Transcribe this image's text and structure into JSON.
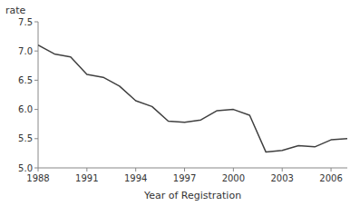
{
  "chart_data": {
    "type": "line",
    "xlabel": "Year of Registration",
    "ylabel": "rate",
    "x": [
      1988,
      1989,
      1990,
      1991,
      1992,
      1993,
      1994,
      1995,
      1996,
      1997,
      1998,
      1999,
      2000,
      2001,
      2002,
      2003,
      2004,
      2005,
      2006,
      2007
    ],
    "values": [
      7.1,
      6.95,
      6.9,
      6.6,
      6.55,
      6.4,
      6.15,
      6.05,
      5.8,
      5.78,
      5.82,
      5.98,
      6.0,
      5.9,
      5.27,
      5.3,
      5.38,
      5.36,
      5.48,
      5.5
    ],
    "color": "#404040",
    "xlim": [
      1988,
      2007
    ],
    "ylim": [
      5.0,
      7.5
    ],
    "xticks": [
      1988,
      1991,
      1994,
      1997,
      2000,
      2003,
      2006
    ],
    "yticks": [
      {
        "value": 5.0,
        "label": "5.0"
      },
      5.5,
      {
        "value": 6.0,
        "label": "6.0"
      },
      6.5,
      {
        "value": 7.0,
        "label": "7.0"
      },
      7.5
    ]
  }
}
